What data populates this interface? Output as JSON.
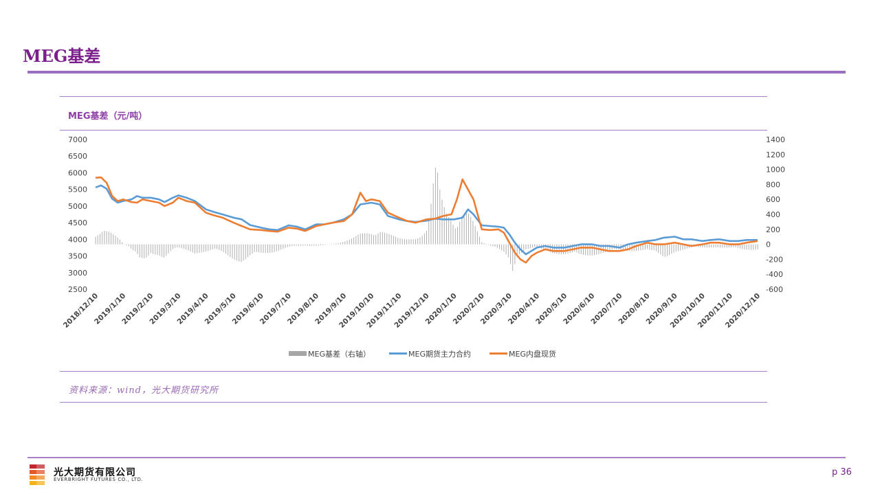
{
  "page": {
    "title": "MEG基差",
    "source": "资料来源：wind，光大期货研究所",
    "page_number": "p 36"
  },
  "company": {
    "name_cn": "光大期货有限公司",
    "name_en": "EVERBRIGHT FUTURES CO., LTD."
  },
  "colors": {
    "accent": "#7b1f8c",
    "rule": "#a77dc6",
    "basis_bar": "#a6a6a6",
    "futures_line": "#5b9bd5",
    "spot_line": "#ed7d31"
  },
  "chart_data": {
    "type": "line",
    "title": "MEG基差（元/吨）",
    "categories": [
      "2018/12/10",
      "2019/1/10",
      "2019/2/10",
      "2019/3/10",
      "2019/4/10",
      "2019/5/10",
      "2019/6/10",
      "2019/7/10",
      "2019/8/10",
      "2019/9/10",
      "2019/10/10",
      "2019/11/10",
      "2019/12/10",
      "2020/1/10",
      "2020/2/10",
      "2020/3/10",
      "2020/4/10",
      "2020/5/10",
      "2020/6/10",
      "2020/7/10",
      "2020/8/10",
      "2020/9/10",
      "2020/10/10",
      "2020/11/10",
      "2020/12/10"
    ],
    "y_left": {
      "min": 2500,
      "max": 7000,
      "ticks": [
        2500,
        3000,
        3500,
        4000,
        4500,
        5000,
        5500,
        6000,
        6500,
        7000
      ]
    },
    "y_right": {
      "min": -600,
      "max": 1400,
      "ticks": [
        -600,
        -400,
        -200,
        0,
        200,
        400,
        600,
        800,
        1000,
        1200,
        1400
      ]
    },
    "legend_position": "bottom",
    "series": [
      {
        "name": "MEG基差（右轴）",
        "type": "bar",
        "axis": "right",
        "points": [
          [
            0,
            180
          ],
          [
            0.3,
            220
          ],
          [
            0.6,
            150
          ],
          [
            0.9,
            60
          ],
          [
            1,
            10
          ],
          [
            1.2,
            -30
          ],
          [
            1.4,
            -150
          ],
          [
            1.6,
            -250
          ],
          [
            1.8,
            -220
          ],
          [
            2,
            -120
          ],
          [
            2.3,
            -150
          ],
          [
            2.5,
            -200
          ],
          [
            2.8,
            -100
          ],
          [
            3,
            -60
          ],
          [
            3.3,
            -80
          ],
          [
            3.6,
            -120
          ],
          [
            4,
            -110
          ],
          [
            4.3,
            -100
          ],
          [
            4.6,
            -120
          ],
          [
            5,
            -200
          ],
          [
            5.3,
            -250
          ],
          [
            5.6,
            -200
          ],
          [
            6,
            -150
          ],
          [
            6.3,
            -120
          ],
          [
            6.6,
            -90
          ],
          [
            7,
            -40
          ],
          [
            7.3,
            -30
          ],
          [
            7.6,
            -20
          ],
          [
            8,
            -20
          ],
          [
            8.3,
            -10
          ],
          [
            8.6,
            10
          ],
          [
            9,
            40
          ],
          [
            9.3,
            80
          ],
          [
            9.6,
            150
          ],
          [
            10,
            200
          ],
          [
            10.3,
            230
          ],
          [
            10.6,
            150
          ],
          [
            11,
            80
          ],
          [
            11.3,
            80
          ],
          [
            11.6,
            120
          ],
          [
            11.8,
            130
          ],
          [
            12,
            200
          ],
          [
            12.15,
            520
          ],
          [
            12.25,
            850
          ],
          [
            12.35,
            1100
          ],
          [
            12.5,
            700
          ],
          [
            12.7,
            500
          ],
          [
            12.9,
            450
          ],
          [
            13.1,
            350
          ],
          [
            13.3,
            500
          ],
          [
            13.5,
            450
          ],
          [
            13.7,
            300
          ],
          [
            14,
            30
          ],
          [
            14.3,
            -20
          ],
          [
            14.6,
            -80
          ],
          [
            14.8,
            -120
          ],
          [
            15,
            -200
          ],
          [
            15.1,
            -380
          ],
          [
            15.3,
            -150
          ],
          [
            15.6,
            -80
          ],
          [
            16,
            -60
          ],
          [
            16.3,
            -90
          ],
          [
            16.6,
            -120
          ],
          [
            17,
            -150
          ],
          [
            17.5,
            -180
          ],
          [
            18,
            -150
          ],
          [
            18.5,
            -120
          ],
          [
            19,
            -100
          ],
          [
            19.5,
            -90
          ],
          [
            20,
            -80
          ],
          [
            20.3,
            -150
          ],
          [
            20.6,
            -200
          ],
          [
            21,
            -100
          ],
          [
            21.3,
            -80
          ],
          [
            21.6,
            -60
          ],
          [
            22,
            -50
          ],
          [
            22.5,
            -40
          ],
          [
            23,
            -60
          ],
          [
            23.5,
            -80
          ],
          [
            24,
            -70
          ]
        ]
      },
      {
        "name": "MEG期货主力合约",
        "type": "line",
        "axis": "left",
        "points": [
          [
            0,
            5560
          ],
          [
            0.2,
            5620
          ],
          [
            0.4,
            5520
          ],
          [
            0.6,
            5220
          ],
          [
            0.8,
            5100
          ],
          [
            1,
            5150
          ],
          [
            1.3,
            5200
          ],
          [
            1.5,
            5300
          ],
          [
            1.7,
            5250
          ],
          [
            2,
            5250
          ],
          [
            2.3,
            5200
          ],
          [
            2.5,
            5120
          ],
          [
            2.8,
            5250
          ],
          [
            3,
            5320
          ],
          [
            3.3,
            5250
          ],
          [
            3.6,
            5150
          ],
          [
            4,
            4900
          ],
          [
            4.3,
            4820
          ],
          [
            4.6,
            4750
          ],
          [
            5,
            4650
          ],
          [
            5.3,
            4600
          ],
          [
            5.6,
            4430
          ],
          [
            6,
            4350
          ],
          [
            6.3,
            4300
          ],
          [
            6.6,
            4280
          ],
          [
            7,
            4420
          ],
          [
            7.3,
            4380
          ],
          [
            7.6,
            4300
          ],
          [
            8,
            4450
          ],
          [
            8.3,
            4450
          ],
          [
            8.6,
            4500
          ],
          [
            9,
            4600
          ],
          [
            9.3,
            4750
          ],
          [
            9.6,
            5050
          ],
          [
            10,
            5100
          ],
          [
            10.3,
            5050
          ],
          [
            10.6,
            4700
          ],
          [
            11,
            4600
          ],
          [
            11.3,
            4550
          ],
          [
            11.6,
            4520
          ],
          [
            12,
            4560
          ],
          [
            12.3,
            4620
          ],
          [
            12.6,
            4600
          ],
          [
            13,
            4600
          ],
          [
            13.3,
            4650
          ],
          [
            13.5,
            4900
          ],
          [
            13.7,
            4750
          ],
          [
            14,
            4420
          ],
          [
            14.3,
            4400
          ],
          [
            14.6,
            4380
          ],
          [
            14.8,
            4350
          ],
          [
            15,
            4150
          ],
          [
            15.2,
            3900
          ],
          [
            15.4,
            3700
          ],
          [
            15.6,
            3550
          ],
          [
            15.8,
            3650
          ],
          [
            16,
            3750
          ],
          [
            16.3,
            3800
          ],
          [
            16.6,
            3750
          ],
          [
            17,
            3750
          ],
          [
            17.3,
            3800
          ],
          [
            17.6,
            3850
          ],
          [
            18,
            3850
          ],
          [
            18.3,
            3800
          ],
          [
            18.6,
            3800
          ],
          [
            19,
            3750
          ],
          [
            19.3,
            3850
          ],
          [
            19.6,
            3900
          ],
          [
            20,
            3950
          ],
          [
            20.3,
            3980
          ],
          [
            20.6,
            4050
          ],
          [
            21,
            4080
          ],
          [
            21.3,
            4000
          ],
          [
            21.6,
            4000
          ],
          [
            22,
            3950
          ],
          [
            22.3,
            3980
          ],
          [
            22.6,
            4000
          ],
          [
            23,
            3950
          ],
          [
            23.3,
            3950
          ],
          [
            23.6,
            3980
          ],
          [
            24,
            3980
          ]
        ]
      },
      {
        "name": "MEG内盘现货",
        "type": "line",
        "axis": "left",
        "points": [
          [
            0,
            5850
          ],
          [
            0.2,
            5860
          ],
          [
            0.4,
            5700
          ],
          [
            0.6,
            5300
          ],
          [
            0.8,
            5150
          ],
          [
            1,
            5200
          ],
          [
            1.3,
            5120
          ],
          [
            1.5,
            5100
          ],
          [
            1.7,
            5200
          ],
          [
            2,
            5150
          ],
          [
            2.3,
            5100
          ],
          [
            2.5,
            5000
          ],
          [
            2.8,
            5100
          ],
          [
            3,
            5250
          ],
          [
            3.3,
            5150
          ],
          [
            3.6,
            5100
          ],
          [
            4,
            4800
          ],
          [
            4.3,
            4720
          ],
          [
            4.6,
            4650
          ],
          [
            5,
            4500
          ],
          [
            5.3,
            4400
          ],
          [
            5.6,
            4300
          ],
          [
            6,
            4280
          ],
          [
            6.3,
            4250
          ],
          [
            6.6,
            4230
          ],
          [
            7,
            4350
          ],
          [
            7.3,
            4320
          ],
          [
            7.6,
            4250
          ],
          [
            8,
            4400
          ],
          [
            8.3,
            4450
          ],
          [
            8.6,
            4500
          ],
          [
            9,
            4550
          ],
          [
            9.3,
            4750
          ],
          [
            9.6,
            5400
          ],
          [
            9.8,
            5150
          ],
          [
            10,
            5200
          ],
          [
            10.3,
            5150
          ],
          [
            10.6,
            4800
          ],
          [
            11,
            4650
          ],
          [
            11.3,
            4550
          ],
          [
            11.6,
            4500
          ],
          [
            12,
            4600
          ],
          [
            12.3,
            4620
          ],
          [
            12.6,
            4700
          ],
          [
            12.9,
            4750
          ],
          [
            13.1,
            5200
          ],
          [
            13.3,
            5800
          ],
          [
            13.5,
            5500
          ],
          [
            13.7,
            5200
          ],
          [
            14,
            4300
          ],
          [
            14.3,
            4280
          ],
          [
            14.6,
            4300
          ],
          [
            14.8,
            4200
          ],
          [
            15,
            3900
          ],
          [
            15.2,
            3600
          ],
          [
            15.4,
            3400
          ],
          [
            15.6,
            3300
          ],
          [
            15.8,
            3500
          ],
          [
            16,
            3600
          ],
          [
            16.3,
            3700
          ],
          [
            16.6,
            3650
          ],
          [
            17,
            3650
          ],
          [
            17.3,
            3700
          ],
          [
            17.6,
            3750
          ],
          [
            18,
            3750
          ],
          [
            18.3,
            3700
          ],
          [
            18.6,
            3650
          ],
          [
            19,
            3650
          ],
          [
            19.3,
            3700
          ],
          [
            19.6,
            3800
          ],
          [
            20,
            3900
          ],
          [
            20.3,
            3850
          ],
          [
            20.6,
            3850
          ],
          [
            21,
            3900
          ],
          [
            21.3,
            3850
          ],
          [
            21.6,
            3800
          ],
          [
            22,
            3850
          ],
          [
            22.3,
            3900
          ],
          [
            22.6,
            3900
          ],
          [
            23,
            3850
          ],
          [
            23.3,
            3850
          ],
          [
            23.6,
            3900
          ],
          [
            24,
            3950
          ]
        ]
      }
    ]
  }
}
